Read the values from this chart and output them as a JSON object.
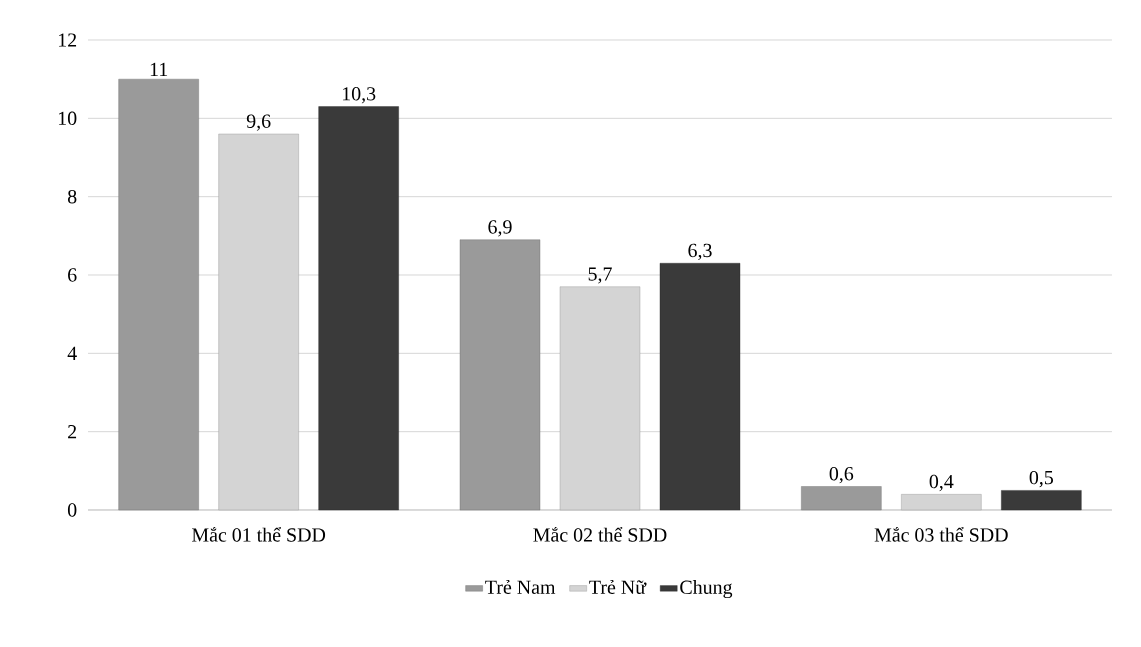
{
  "chart_data": {
    "type": "bar",
    "categories": [
      "Mắc 01 thể SDD",
      "Mắc 02 thể SDD",
      "Mắc 03 thể SDD"
    ],
    "series": [
      {
        "name": "Trẻ Nam",
        "color": "#9a9a9a",
        "values": [
          11,
          6.9,
          0.6
        ],
        "value_labels": [
          "11",
          "6,9",
          "0,6"
        ]
      },
      {
        "name": "Trẻ Nữ",
        "color": "#d4d4d4",
        "values": [
          9.6,
          5.7,
          0.4
        ],
        "value_labels": [
          "9,6",
          "5,7",
          "0,4"
        ]
      },
      {
        "name": "Chung",
        "color": "#3a3a3a",
        "values": [
          10.3,
          6.3,
          0.5
        ],
        "value_labels": [
          "10,3",
          "6,3",
          "0,5"
        ]
      }
    ],
    "ylim": [
      0,
      12
    ],
    "yticks": [
      0,
      2,
      4,
      6,
      8,
      10,
      12
    ],
    "grid": "y",
    "legend": "bottom"
  }
}
